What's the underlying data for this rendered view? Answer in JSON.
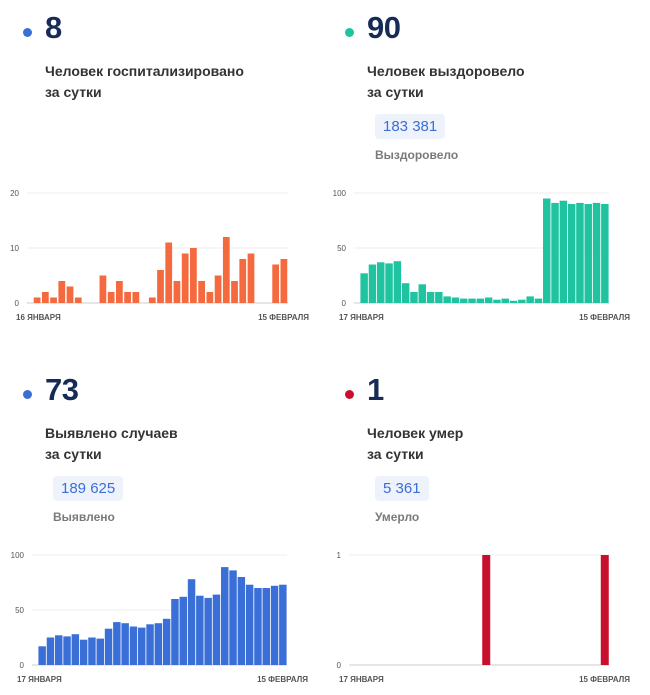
{
  "panels": [
    {
      "id": "hospitalized",
      "value": "8",
      "caption_line1": "Человек госпитализировано",
      "caption_line2": "за сутки",
      "dot_color": "#3a6fd8",
      "bar_color": "#f4693e",
      "chart_data": {
        "type": "bar",
        "x_start_label": "16 ЯНВАРЯ",
        "x_end_label": "15 ФЕВРАЛЯ",
        "y_ticks": [
          "0",
          "10",
          "20"
        ],
        "ylim": [
          0,
          20
        ],
        "values": [
          1,
          2,
          1,
          4,
          3,
          1,
          0,
          0,
          5,
          2,
          4,
          2,
          2,
          0,
          1,
          6,
          11,
          4,
          9,
          10,
          4,
          2,
          5,
          12,
          4,
          8,
          9,
          0,
          0,
          7,
          8
        ]
      }
    },
    {
      "id": "recovered",
      "value": "90",
      "caption_line1": "Человек выздоровело",
      "caption_line2": "за сутки",
      "total": "183 381",
      "total_label": "Выздоровело",
      "dot_color": "#1fc3a0",
      "bar_color": "#1fc3a0",
      "chart_data": {
        "type": "bar",
        "x_start_label": "17 ЯНВАРЯ",
        "x_end_label": "15 ФЕВРАЛЯ",
        "y_ticks": [
          "0",
          "50",
          "100"
        ],
        "ylim": [
          0,
          100
        ],
        "values": [
          27,
          35,
          37,
          36,
          38,
          18,
          10,
          17,
          10,
          10,
          6,
          5,
          4,
          4,
          4,
          5,
          3,
          4,
          2,
          3,
          6,
          4,
          95,
          91,
          93,
          90,
          91,
          90,
          91,
          90
        ]
      }
    },
    {
      "id": "cases",
      "value": "73",
      "caption_line1": "Выявлено случаев",
      "caption_line2": "за сутки",
      "total": "189 625",
      "total_label": "Выявлено",
      "dot_color": "#3a6fd8",
      "bar_color": "#3a6fd8",
      "chart_data": {
        "type": "bar",
        "x_start_label": "17 ЯНВАРЯ",
        "x_end_label": "15 ФЕВРАЛЯ",
        "y_ticks": [
          "0",
          "50",
          "100"
        ],
        "ylim": [
          0,
          100
        ],
        "values": [
          17,
          25,
          27,
          26,
          28,
          23,
          25,
          24,
          33,
          39,
          38,
          35,
          34,
          37,
          38,
          42,
          60,
          62,
          78,
          63,
          61,
          64,
          89,
          86,
          80,
          73,
          70,
          70,
          72,
          73
        ]
      }
    },
    {
      "id": "deaths",
      "value": "1",
      "caption_line1": "Человек умер",
      "caption_line2": "за сутки",
      "total": "5 361",
      "total_label": "Умерло",
      "dot_color": "#c8102e",
      "bar_color": "#c8102e",
      "chart_data": {
        "type": "bar",
        "x_start_label": "17 ЯНВАРЯ",
        "x_end_label": "15 ФЕВРАЛЯ",
        "y_ticks": [
          "0",
          "1"
        ],
        "ylim": [
          0,
          1
        ],
        "values": [
          0,
          0,
          0,
          0,
          0,
          0,
          0,
          0,
          0,
          0,
          0,
          0,
          0,
          0,
          0,
          1,
          0,
          0,
          0,
          0,
          0,
          0,
          0,
          0,
          0,
          0,
          0,
          0,
          0,
          1
        ]
      }
    }
  ]
}
